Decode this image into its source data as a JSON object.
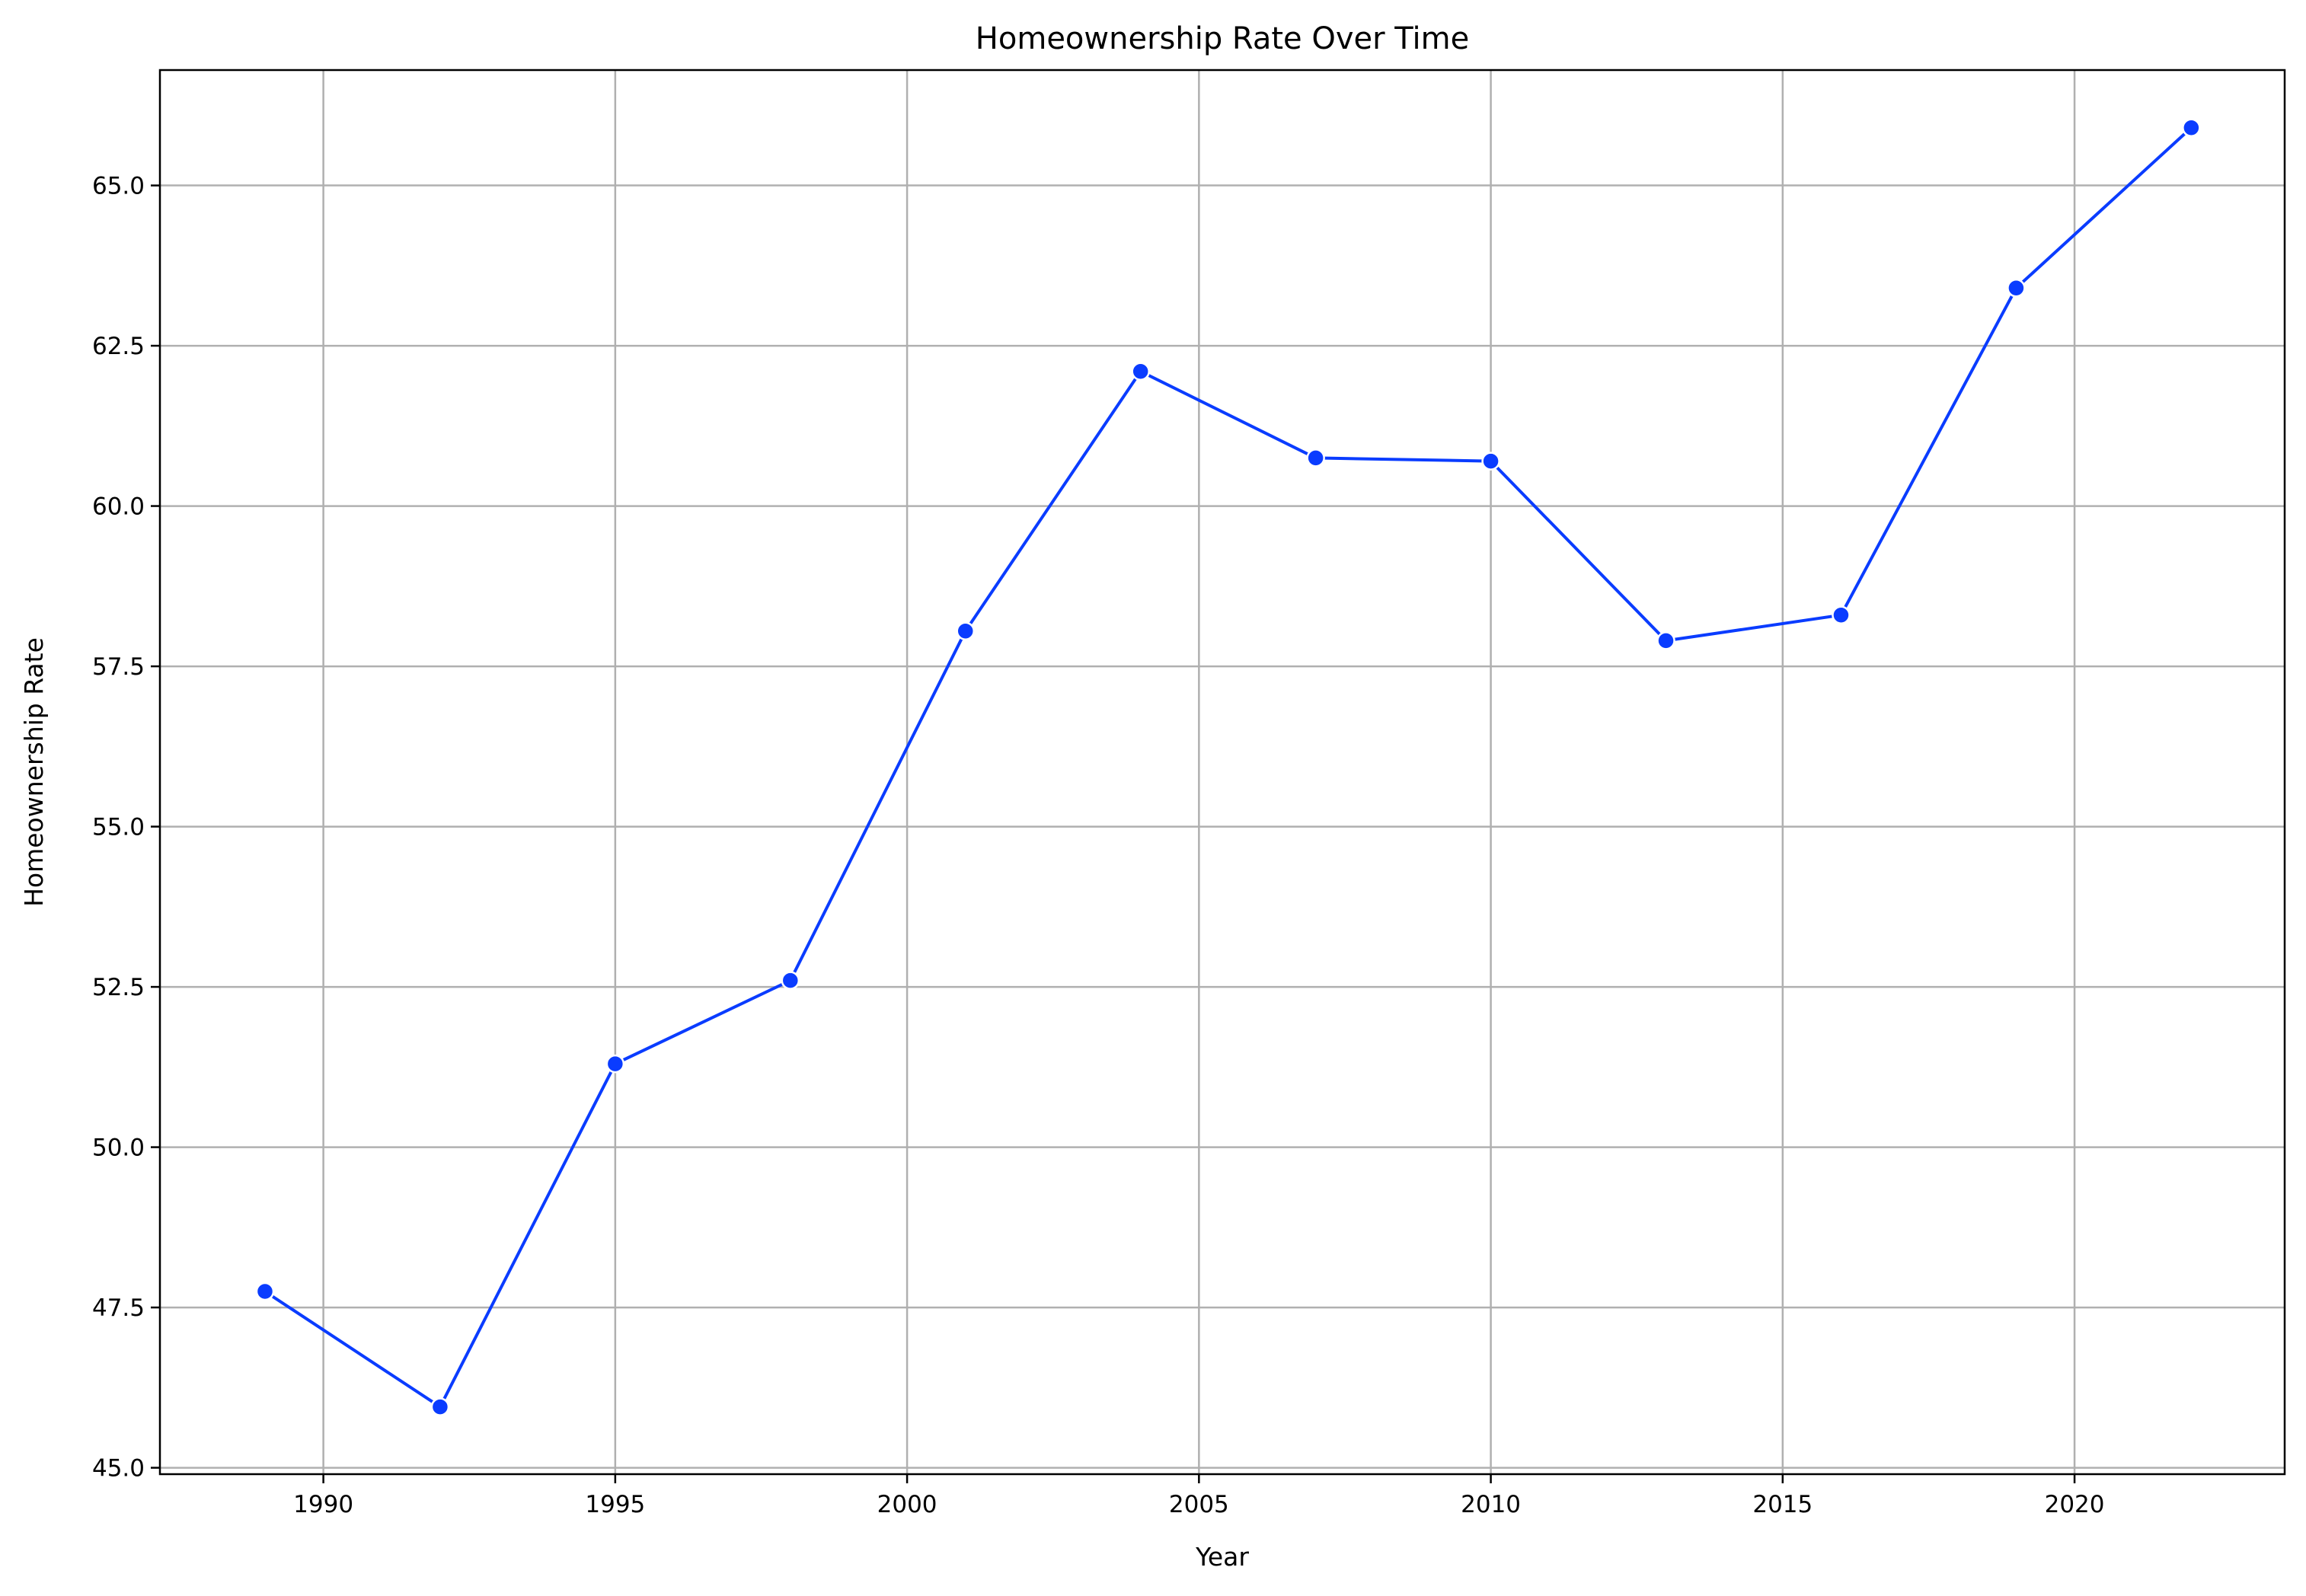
{
  "chart_data": {
    "type": "line",
    "title": "Homeownership Rate Over Time",
    "xlabel": "Year",
    "ylabel": "Homeownership Rate",
    "xlim": [
      1987.2,
      2023.6
    ],
    "ylim": [
      44.9,
      66.8
    ],
    "xticks": [
      1990,
      1995,
      2000,
      2005,
      2010,
      2015,
      2020
    ],
    "yticks": [
      45.0,
      47.5,
      50.0,
      52.5,
      55.0,
      57.5,
      60.0,
      62.5,
      65.0
    ],
    "grid": true,
    "series": [
      {
        "color": "#0a3cff",
        "marker": "circle",
        "x": [
          1989,
          1992,
          1995,
          1998,
          2001,
          2004,
          2007,
          2010,
          2013,
          2016,
          2019,
          2022
        ],
        "y": [
          47.75,
          45.95,
          51.3,
          52.6,
          58.05,
          62.1,
          60.75,
          60.7,
          57.9,
          58.3,
          63.4,
          65.9
        ]
      }
    ]
  }
}
